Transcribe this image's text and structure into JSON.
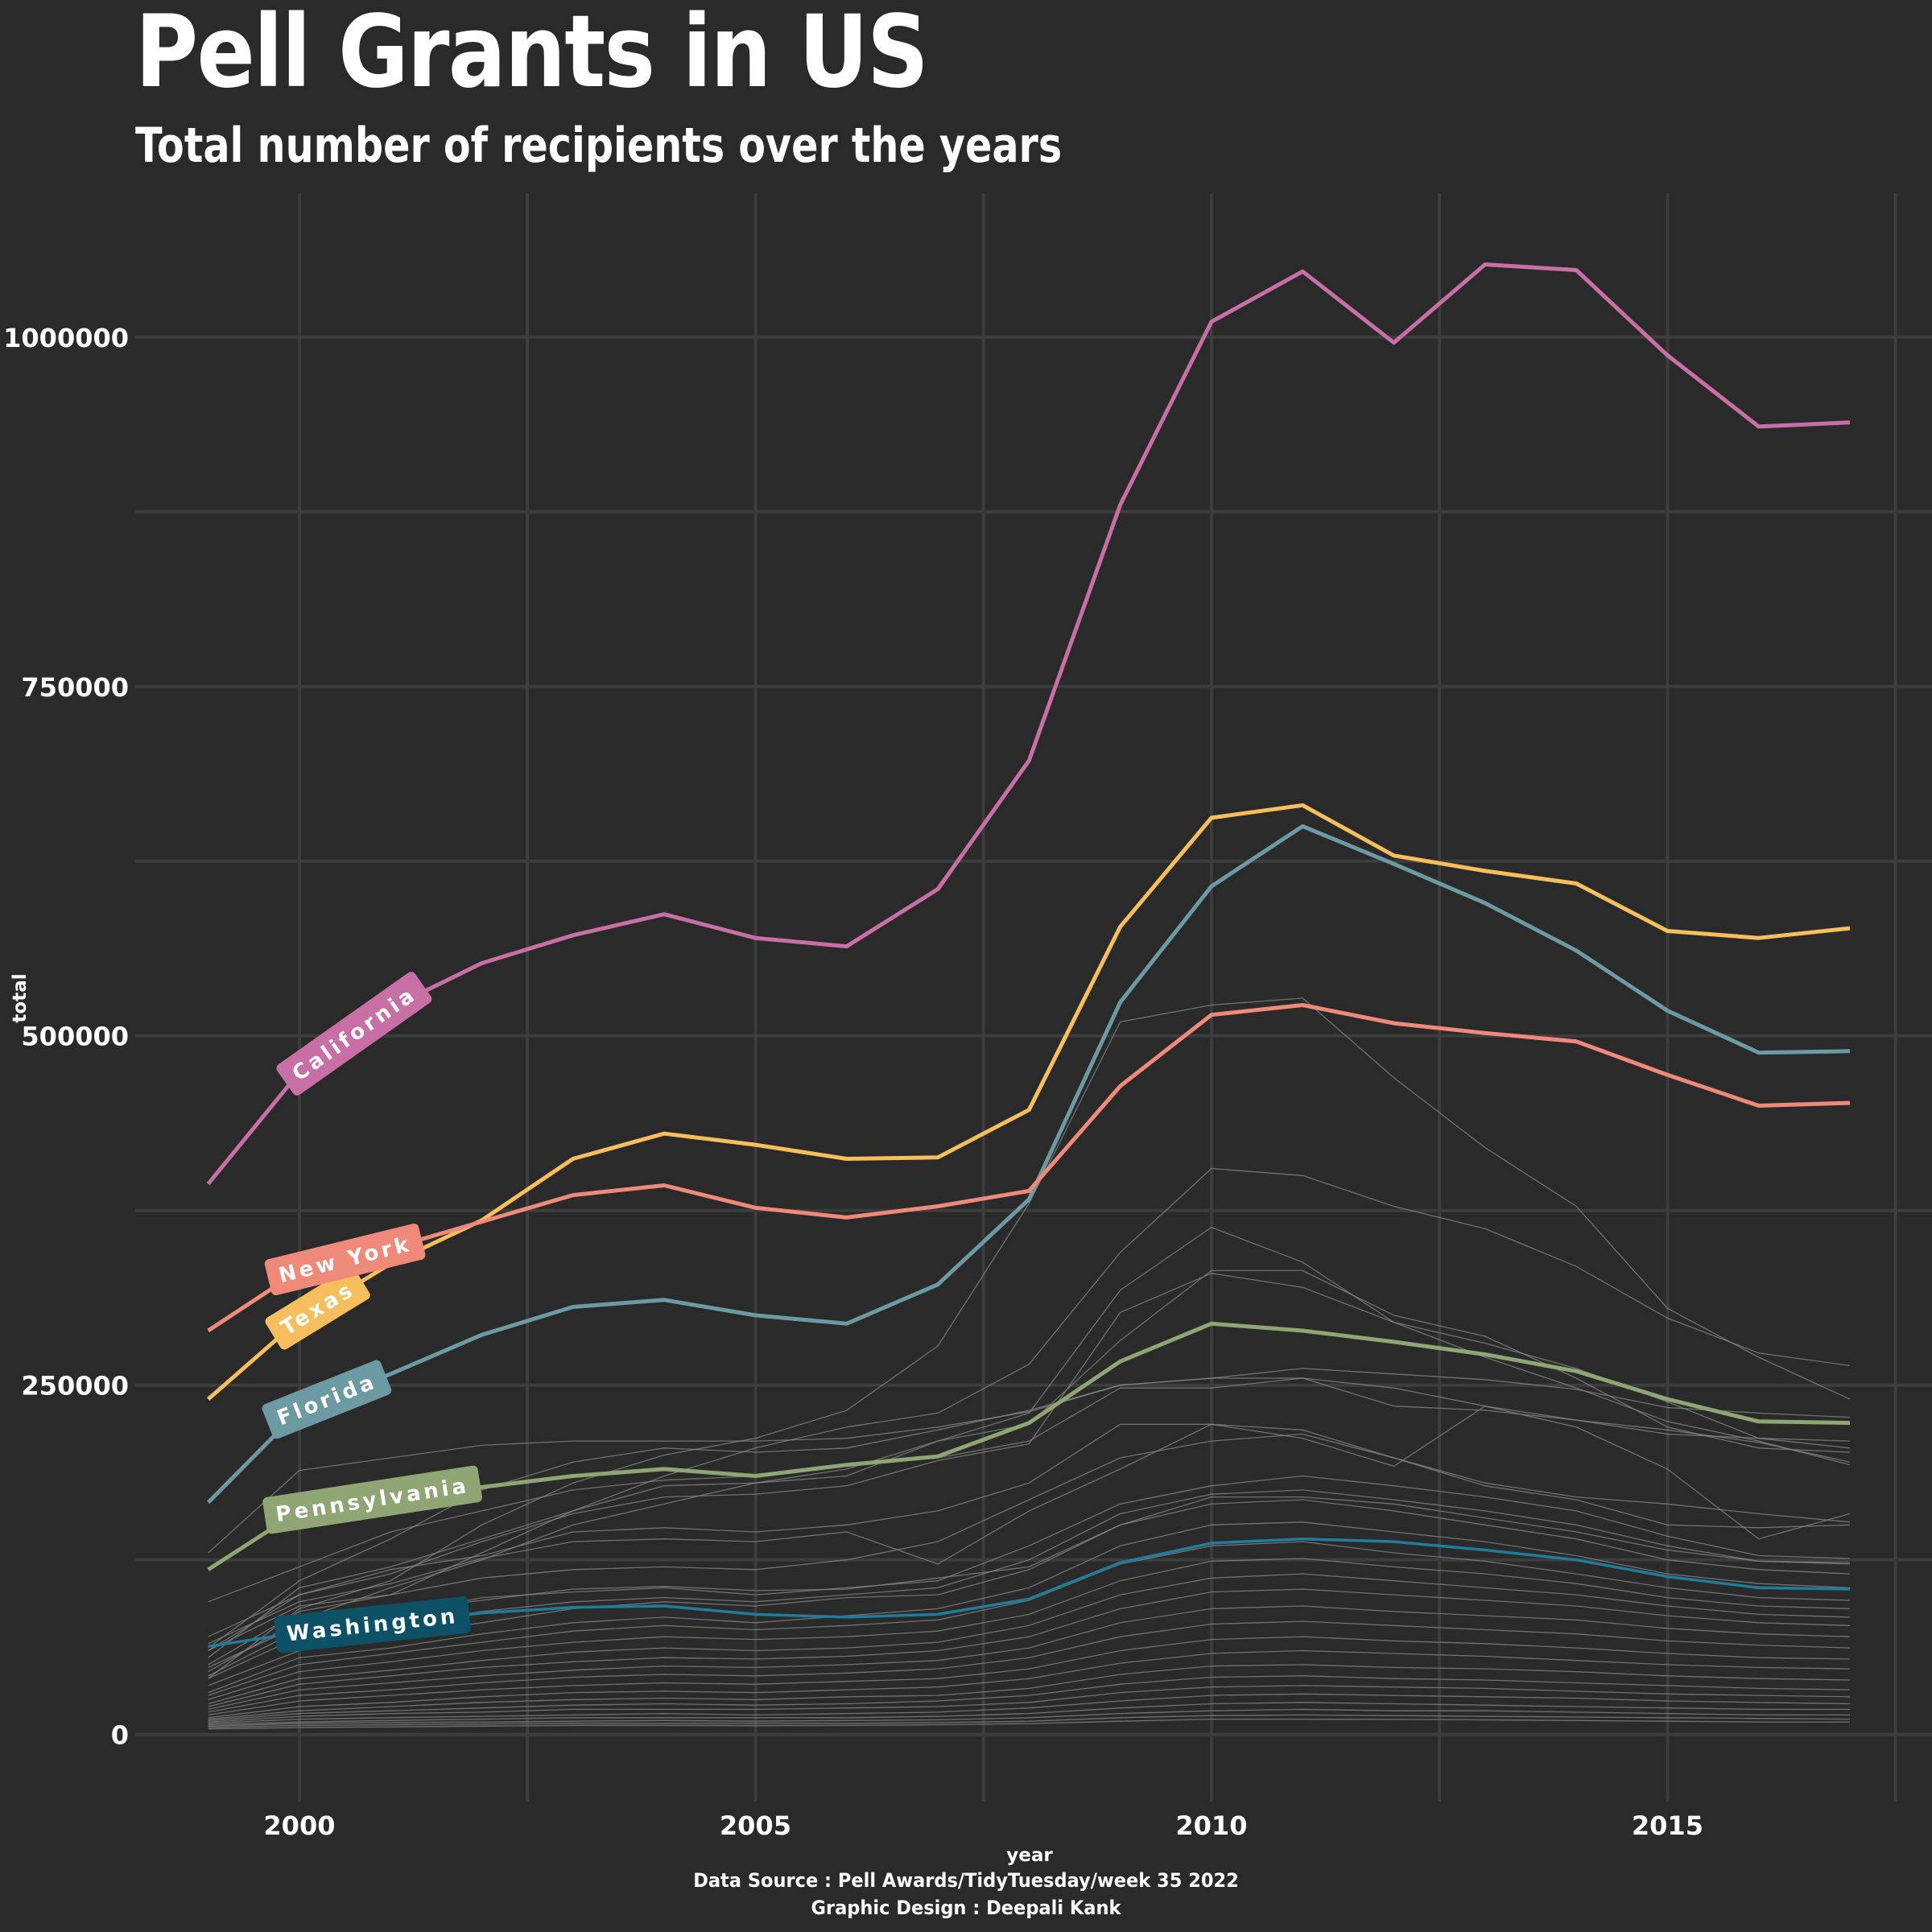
{
  "title": "Pell Grants in US",
  "subtitle": "Total number of recipients over the years",
  "caption": {
    "source": "Data Source : Pell Awards/TidyTuesday/week 35 2022",
    "design": "Graphic Design : Deepali Kank"
  },
  "colors": {
    "background": "#2a2a2a",
    "grid": "#3d3d3d",
    "other_states": "#8a8a8a",
    "text": "#ffffff"
  },
  "chart_data": {
    "type": "line",
    "title": "Pell Grants in US",
    "subtitle": "Total number of recipients over the years",
    "xlabel": "year",
    "ylabel": "total",
    "xlim": [
      1998.2,
      2017.9
    ],
    "ylim": [
      -48000,
      1103000
    ],
    "x_ticks": [
      2000,
      2005,
      2010,
      2015
    ],
    "x_tick_labels": [
      "2000",
      "2005",
      "2010",
      "2015"
    ],
    "y_ticks": [
      0,
      250000,
      500000,
      750000,
      1000000
    ],
    "y_tick_labels": [
      "0",
      "250000",
      "500000",
      "750000",
      "1000000"
    ],
    "grid": true,
    "legend": "none (direct labels)",
    "x": [
      1999,
      2000,
      2001,
      2002,
      2003,
      2004,
      2005,
      2006,
      2007,
      2008,
      2009,
      2010,
      2011,
      2012,
      2013,
      2014,
      2015,
      2016,
      2017
    ],
    "highlighted_series": [
      {
        "name": "California",
        "color": "#c86fa6",
        "label_year": 2000.6,
        "values": [
          394000,
          474000,
          520000,
          552000,
          572000,
          587000,
          570000,
          564000,
          605000,
          697000,
          880000,
          1011000,
          1047000,
          996000,
          1052000,
          1048000,
          987000,
          936000,
          939000
        ]
      },
      {
        "name": "Texas",
        "color": "#f6be5c",
        "label_year": 2000.2,
        "values": [
          240000,
          297000,
          337000,
          368000,
          412000,
          430000,
          422000,
          412000,
          413000,
          447000,
          578000,
          656000,
          665000,
          629000,
          618000,
          609000,
          575000,
          570000,
          577000
        ]
      },
      {
        "name": "Florida",
        "color": "#6c9aa3",
        "label_year": 2000.3,
        "values": [
          166000,
          232000,
          258000,
          286000,
          306000,
          311000,
          300000,
          294000,
          322000,
          383000,
          524000,
          607000,
          650000,
          623000,
          595000,
          561000,
          518000,
          488000,
          489000
        ]
      },
      {
        "name": "New York",
        "color": "#ef8a7b",
        "label_year": 2000.5,
        "values": [
          289000,
          332000,
          348000,
          367000,
          386000,
          393000,
          377000,
          370000,
          378000,
          389000,
          464000,
          515000,
          522000,
          509000,
          502000,
          496000,
          472000,
          450000,
          452000
        ]
      },
      {
        "name": "Pennsylvania",
        "color": "#8fa573",
        "label_year": 2000.8,
        "values": [
          118000,
          160000,
          170000,
          177000,
          185000,
          190000,
          185000,
          193000,
          199000,
          223000,
          267000,
          294000,
          289000,
          281000,
          272000,
          260000,
          240000,
          224000,
          223000
        ]
      },
      {
        "name": "Washington",
        "color": "#1f7c9a",
        "label_box": "#0d5166",
        "label_year": 2000.8,
        "values": [
          63000,
          73000,
          80000,
          87000,
          91000,
          92000,
          86000,
          84000,
          86000,
          97000,
          123000,
          137000,
          140000,
          138000,
          132000,
          125000,
          113000,
          105000,
          104000
        ]
      }
    ],
    "other_series": [
      {
        "values": [
          130000,
          189000,
          198000,
          207000,
          210000,
          210000,
          210000,
          212000,
          220000,
          231000,
          250000,
          255000,
          262000,
          258000,
          254000,
          247000,
          234000,
          230000,
          227000
        ]
      },
      {
        "values": [
          40000,
          90000,
          110000,
          150000,
          180000,
          200000,
          212000,
          232000,
          278000,
          380000,
          510000,
          522000,
          527000,
          470000,
          420000,
          378000,
          305000,
          270000,
          240000
        ]
      },
      {
        "values": [
          50000,
          88000,
          100000,
          130000,
          160000,
          185000,
          205000,
          220000,
          230000,
          265000,
          345000,
          405000,
          400000,
          378000,
          362000,
          335000,
          298000,
          273000,
          264000
        ]
      },
      {
        "values": [
          45000,
          82000,
          105000,
          125000,
          150000,
          165000,
          180000,
          190000,
          210000,
          230000,
          318000,
          363000,
          338000,
          295000,
          270000,
          248000,
          224000,
          210000,
          193000
        ]
      },
      {
        "values": [
          60000,
          100000,
          115000,
          138000,
          158000,
          170000,
          172000,
          178000,
          196000,
          208000,
          302000,
          330000,
          320000,
          295000,
          280000,
          262000,
          238000,
          212000,
          205000
        ]
      },
      {
        "values": [
          55000,
          105000,
          120000,
          140000,
          160000,
          178000,
          180000,
          185000,
          210000,
          222000,
          282000,
          332000,
          332000,
          300000,
          285000,
          255000,
          220000,
          205000,
          202000
        ]
      },
      {
        "values": [
          95000,
          120000,
          145000,
          160000,
          175000,
          182000,
          185000,
          192000,
          198000,
          210000,
          248000,
          248000,
          255000,
          235000,
          232000,
          225000,
          218000,
          209000,
          195000
        ]
      },
      {
        "values": [
          70000,
          100000,
          118000,
          128000,
          145000,
          148000,
          145000,
          150000,
          160000,
          180000,
          222000,
          222000,
          212000,
          192000,
          235000,
          220000,
          190000,
          140000,
          158000
        ]
      },
      {
        "values": [
          65000,
          95000,
          108000,
          126000,
          138000,
          140000,
          138000,
          145000,
          122000,
          160000,
          190000,
          222000,
          218000,
          198000,
          180000,
          170000,
          165000,
          158000,
          152000
        ]
      },
      {
        "values": [
          60000,
          92000,
          100000,
          112000,
          118000,
          120000,
          118000,
          125000,
          138000,
          168000,
          198000,
          210000,
          215000,
          198000,
          178000,
          168000,
          150000,
          148000,
          150000
        ]
      },
      {
        "values": [
          48000,
          78000,
          85000,
          98000,
          102000,
          105000,
          100000,
          105000,
          110000,
          135000,
          165000,
          178000,
          185000,
          178000,
          170000,
          160000,
          142000,
          128000,
          126000
        ]
      },
      {
        "values": [
          40000,
          70000,
          78000,
          88000,
          95000,
          98000,
          95000,
          100000,
          105000,
          125000,
          158000,
          172000,
          175000,
          168000,
          160000,
          150000,
          135000,
          124000,
          122000
        ]
      },
      {
        "values": [
          35000,
          60000,
          70000,
          80000,
          90000,
          95000,
          92000,
          98000,
          100000,
          118000,
          150000,
          165000,
          168000,
          160000,
          150000,
          140000,
          125000,
          118000,
          115000
        ]
      },
      {
        "values": [
          30000,
          55000,
          62000,
          72000,
          80000,
          84000,
          80000,
          85000,
          90000,
          105000,
          135000,
          150000,
          152000,
          145000,
          138000,
          128000,
          115000,
          108000,
          105000
        ]
      },
      {
        "values": [
          28000,
          50000,
          58000,
          66000,
          74000,
          78000,
          75000,
          78000,
          82000,
          96000,
          122000,
          135000,
          138000,
          130000,
          124000,
          115000,
          105000,
          98000,
          96000
        ]
      },
      {
        "values": [
          25000,
          45000,
          52000,
          60000,
          66000,
          70000,
          68000,
          70000,
          74000,
          86000,
          110000,
          124000,
          126000,
          120000,
          115000,
          108000,
          98000,
          92000,
          90000
        ]
      },
      {
        "values": [
          22000,
          40000,
          46000,
          53000,
          59000,
          62000,
          60000,
          62000,
          66000,
          78000,
          100000,
          112000,
          115000,
          110000,
          105000,
          100000,
          92000,
          86000,
          84000
        ]
      },
      {
        "values": [
          20000,
          36000,
          42000,
          48000,
          52000,
          55000,
          54000,
          56000,
          60000,
          70000,
          90000,
          102000,
          104000,
          100000,
          96000,
          92000,
          85000,
          80000,
          78000
        ]
      },
      {
        "values": [
          18000,
          32000,
          37000,
          42000,
          46000,
          49000,
          48000,
          50000,
          53000,
          62000,
          80000,
          90000,
          92000,
          88000,
          85000,
          82000,
          76000,
          72000,
          70000
        ]
      },
      {
        "values": [
          16000,
          28000,
          32000,
          37000,
          41000,
          43000,
          42000,
          44000,
          47000,
          55000,
          70000,
          79000,
          81000,
          78000,
          75000,
          72000,
          67000,
          64000,
          62000
        ]
      },
      {
        "values": [
          14000,
          24000,
          28000,
          32000,
          35000,
          37000,
          36000,
          38000,
          40000,
          47000,
          60000,
          68000,
          70000,
          67000,
          65000,
          62000,
          58000,
          55000,
          54000
        ]
      },
      {
        "values": [
          12000,
          20000,
          23000,
          27000,
          30000,
          31000,
          30000,
          32000,
          34000,
          40000,
          51000,
          58000,
          60000,
          58000,
          56000,
          53000,
          50000,
          48000,
          47000
        ]
      },
      {
        "values": [
          11000,
          17000,
          20000,
          23000,
          25000,
          26000,
          25000,
          27000,
          28000,
          33000,
          43000,
          49000,
          50000,
          48000,
          47000,
          45000,
          42000,
          40000,
          39000
        ]
      },
      {
        "values": [
          10000,
          15000,
          17000,
          19000,
          21000,
          22000,
          21000,
          22000,
          24000,
          28000,
          36000,
          41000,
          42000,
          40000,
          39000,
          37000,
          35000,
          33000,
          32000
        ]
      },
      {
        "values": [
          9000,
          13000,
          15000,
          16000,
          18000,
          18000,
          18000,
          19000,
          20000,
          23000,
          30000,
          34000,
          35000,
          34000,
          33000,
          31000,
          29000,
          28000,
          27000
        ]
      },
      {
        "values": [
          8000,
          11000,
          12000,
          13000,
          14000,
          15000,
          14000,
          15000,
          16000,
          19000,
          24000,
          28000,
          29000,
          28000,
          27000,
          26000,
          24000,
          23000,
          22000
        ]
      },
      {
        "values": [
          7000,
          9000,
          10000,
          11000,
          12000,
          12000,
          12000,
          12000,
          13000,
          15000,
          19000,
          22000,
          23000,
          22000,
          21000,
          20000,
          19000,
          18000,
          18000
        ]
      },
      {
        "values": [
          6000,
          8000,
          8500,
          9000,
          9500,
          10000,
          9500,
          10000,
          10500,
          12000,
          15000,
          17000,
          18000,
          17000,
          17000,
          16000,
          15000,
          14000,
          14000
        ]
      },
      {
        "values": [
          5000,
          6500,
          7000,
          7500,
          8000,
          8000,
          8000,
          8000,
          8500,
          9500,
          12000,
          13500,
          14000,
          13500,
          13000,
          12500,
          12000,
          11500,
          11000
        ]
      },
      {
        "values": [
          4000,
          5000,
          5500,
          6000,
          6500,
          6500,
          6300,
          6500,
          7000,
          7800,
          9500,
          11000,
          11000,
          10800,
          10500,
          10000,
          9500,
          9000,
          9000
        ]
      },
      {
        "values": [
          62000,
          110000,
          140000,
          175000,
          195000,
          205000,
          202000,
          205000,
          218000,
          232000,
          250000,
          255000,
          255000,
          248000,
          235000,
          225000,
          215000,
          212000,
          210000
        ]
      },
      {
        "values": [
          42000,
          75000,
          88000,
          96000,
          104000,
          106000,
          103000,
          104000,
          112000,
          120000,
          150000,
          170000,
          170000,
          165000,
          155000,
          145000,
          132000,
          124000,
          123000
        ]
      }
    ]
  }
}
